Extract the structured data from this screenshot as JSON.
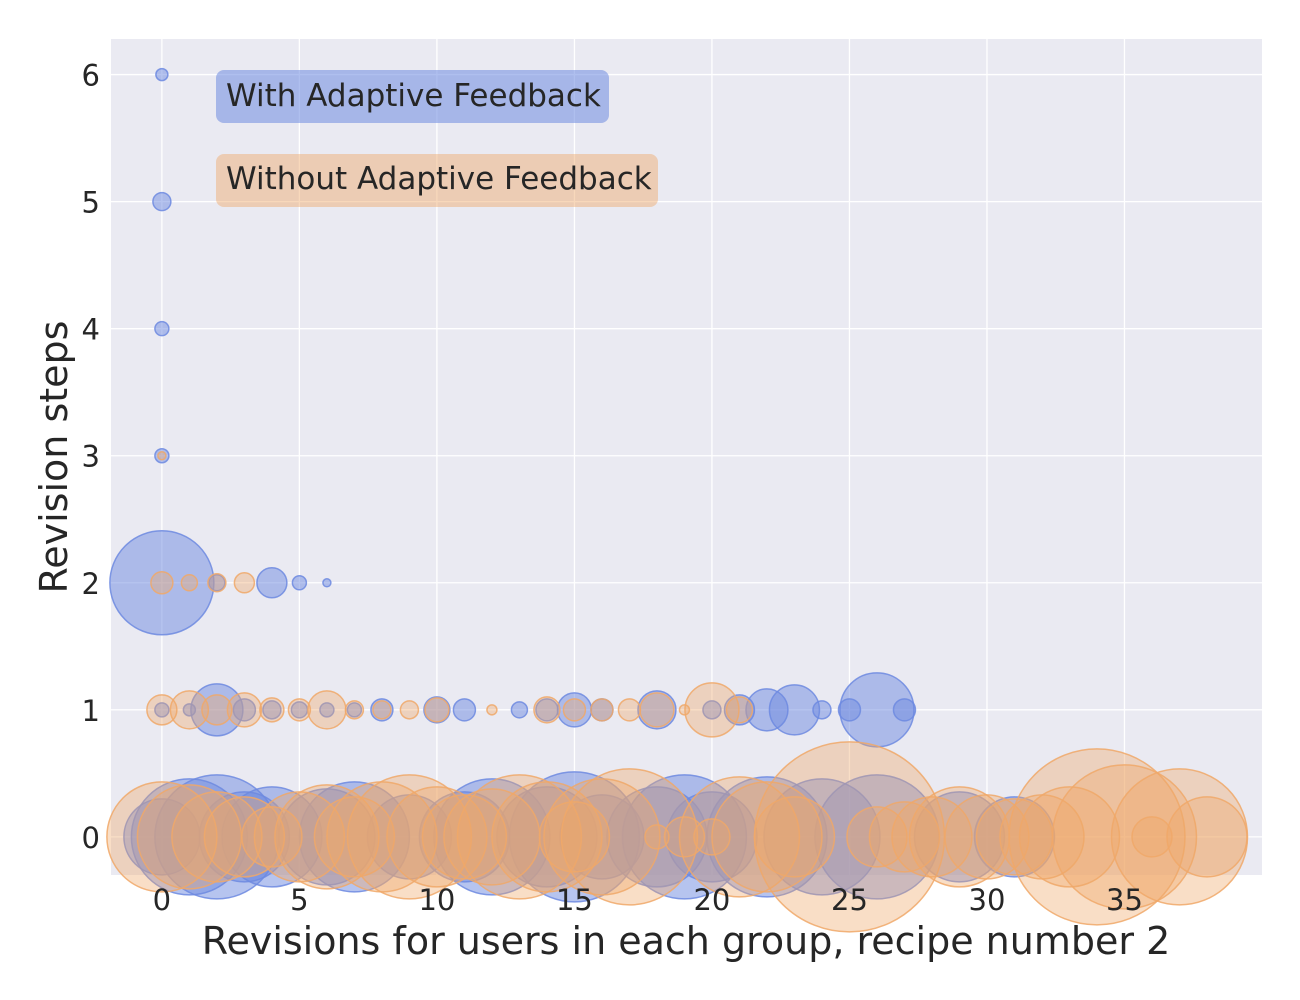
{
  "chart_data": {
    "type": "scatter",
    "xlabel": "Revisions for users in each group, recipe number 2",
    "ylabel": "Revision steps",
    "xlim": [
      -1.85,
      40
    ],
    "ylim": [
      -0.3,
      6.28
    ],
    "xticks": [
      0,
      5,
      10,
      15,
      20,
      25,
      30,
      35
    ],
    "yticks": [
      0,
      1,
      2,
      3,
      4,
      5,
      6
    ],
    "grid": true,
    "legend": "top-left",
    "size_note": "",
    "series": [
      {
        "name": "With Adaptive Feedback",
        "color": "#6d8ae0",
        "points": [
          {
            "x": 0,
            "y": 6,
            "s": 6
          },
          {
            "x": 0,
            "y": 5,
            "s": 9
          },
          {
            "x": 0,
            "y": 4,
            "s": 7
          },
          {
            "x": 0,
            "y": 3,
            "s": 7
          },
          {
            "x": 0,
            "y": 2,
            "s": 52
          },
          {
            "x": 2,
            "y": 2,
            "s": 8
          },
          {
            "x": 4,
            "y": 2,
            "s": 15
          },
          {
            "x": 5,
            "y": 2,
            "s": 7
          },
          {
            "x": 6,
            "y": 2,
            "s": 4
          },
          {
            "x": 0,
            "y": 1,
            "s": 7
          },
          {
            "x": 1,
            "y": 1,
            "s": 6
          },
          {
            "x": 2,
            "y": 1,
            "s": 26
          },
          {
            "x": 3,
            "y": 1,
            "s": 11
          },
          {
            "x": 4,
            "y": 1,
            "s": 9
          },
          {
            "x": 5,
            "y": 1,
            "s": 8
          },
          {
            "x": 6,
            "y": 1,
            "s": 7
          },
          {
            "x": 7,
            "y": 1,
            "s": 7
          },
          {
            "x": 8,
            "y": 1,
            "s": 11
          },
          {
            "x": 10,
            "y": 1,
            "s": 13
          },
          {
            "x": 11,
            "y": 1,
            "s": 11
          },
          {
            "x": 13,
            "y": 1,
            "s": 8
          },
          {
            "x": 14,
            "y": 1,
            "s": 11
          },
          {
            "x": 15,
            "y": 1,
            "s": 17
          },
          {
            "x": 16,
            "y": 1,
            "s": 11
          },
          {
            "x": 18,
            "y": 1,
            "s": 19
          },
          {
            "x": 20,
            "y": 1,
            "s": 9
          },
          {
            "x": 21,
            "y": 1,
            "s": 15
          },
          {
            "x": 22,
            "y": 1,
            "s": 21
          },
          {
            "x": 23,
            "y": 1,
            "s": 25
          },
          {
            "x": 24,
            "y": 1,
            "s": 9
          },
          {
            "x": 25,
            "y": 1,
            "s": 11
          },
          {
            "x": 26,
            "y": 1,
            "s": 37
          },
          {
            "x": 27,
            "y": 1,
            "s": 11
          },
          {
            "x": 0,
            "y": 0,
            "s": 38
          },
          {
            "x": 1,
            "y": 0,
            "s": 58
          },
          {
            "x": 2,
            "y": 0,
            "s": 62
          },
          {
            "x": 3,
            "y": 0,
            "s": 45
          },
          {
            "x": 4,
            "y": 0,
            "s": 50
          },
          {
            "x": 6,
            "y": 0,
            "s": 48
          },
          {
            "x": 7,
            "y": 0,
            "s": 55
          },
          {
            "x": 9,
            "y": 0,
            "s": 42
          },
          {
            "x": 11,
            "y": 0,
            "s": 45
          },
          {
            "x": 12,
            "y": 0,
            "s": 58
          },
          {
            "x": 14,
            "y": 0,
            "s": 50
          },
          {
            "x": 15,
            "y": 0,
            "s": 65
          },
          {
            "x": 16,
            "y": 0,
            "s": 42
          },
          {
            "x": 18,
            "y": 0,
            "s": 50
          },
          {
            "x": 19,
            "y": 0,
            "s": 62
          },
          {
            "x": 20,
            "y": 0,
            "s": 45
          },
          {
            "x": 22,
            "y": 0,
            "s": 60
          },
          {
            "x": 24,
            "y": 0,
            "s": 58
          },
          {
            "x": 26,
            "y": 0,
            "s": 62
          },
          {
            "x": 29,
            "y": 0,
            "s": 45
          },
          {
            "x": 31,
            "y": 0,
            "s": 40
          }
        ]
      },
      {
        "name": "Without Adaptive Feedback",
        "color": "#f0a868",
        "points": [
          {
            "x": 0,
            "y": 3,
            "s": 4
          },
          {
            "x": 0,
            "y": 2,
            "s": 11
          },
          {
            "x": 1,
            "y": 2,
            "s": 8
          },
          {
            "x": 2,
            "y": 2,
            "s": 9
          },
          {
            "x": 3,
            "y": 2,
            "s": 10
          },
          {
            "x": 0,
            "y": 1,
            "s": 15
          },
          {
            "x": 1,
            "y": 1,
            "s": 19
          },
          {
            "x": 2,
            "y": 1,
            "s": 15
          },
          {
            "x": 3,
            "y": 1,
            "s": 17
          },
          {
            "x": 4,
            "y": 1,
            "s": 12
          },
          {
            "x": 5,
            "y": 1,
            "s": 11
          },
          {
            "x": 6,
            "y": 1,
            "s": 19
          },
          {
            "x": 7,
            "y": 1,
            "s": 9
          },
          {
            "x": 8,
            "y": 1,
            "s": 9
          },
          {
            "x": 9,
            "y": 1,
            "s": 9
          },
          {
            "x": 10,
            "y": 1,
            "s": 12
          },
          {
            "x": 12,
            "y": 1,
            "s": 5
          },
          {
            "x": 14,
            "y": 1,
            "s": 13
          },
          {
            "x": 15,
            "y": 1,
            "s": 11
          },
          {
            "x": 16,
            "y": 1,
            "s": 11
          },
          {
            "x": 17,
            "y": 1,
            "s": 11
          },
          {
            "x": 18,
            "y": 1,
            "s": 17
          },
          {
            "x": 19,
            "y": 1,
            "s": 5
          },
          {
            "x": 20,
            "y": 1,
            "s": 27
          },
          {
            "x": 21,
            "y": 1,
            "s": 13
          },
          {
            "x": 0,
            "y": 0,
            "s": 55
          },
          {
            "x": 1,
            "y": 0,
            "s": 52
          },
          {
            "x": 2,
            "y": 0,
            "s": 45
          },
          {
            "x": 3,
            "y": 0,
            "s": 40
          },
          {
            "x": 4,
            "y": 0,
            "s": 30
          },
          {
            "x": 5,
            "y": 0,
            "s": 45
          },
          {
            "x": 6,
            "y": 0,
            "s": 52
          },
          {
            "x": 7,
            "y": 0,
            "s": 40
          },
          {
            "x": 8,
            "y": 0,
            "s": 55
          },
          {
            "x": 9,
            "y": 0,
            "s": 62
          },
          {
            "x": 10,
            "y": 0,
            "s": 50
          },
          {
            "x": 11,
            "y": 0,
            "s": 42
          },
          {
            "x": 12,
            "y": 0,
            "s": 48
          },
          {
            "x": 13,
            "y": 0,
            "s": 62
          },
          {
            "x": 14,
            "y": 0,
            "s": 55
          },
          {
            "x": 15,
            "y": 0,
            "s": 35
          },
          {
            "x": 16,
            "y": 0,
            "s": 58
          },
          {
            "x": 17,
            "y": 0,
            "s": 68
          },
          {
            "x": 18,
            "y": 0,
            "s": 12
          },
          {
            "x": 19,
            "y": 0,
            "s": 20
          },
          {
            "x": 20,
            "y": 0,
            "s": 18
          },
          {
            "x": 21,
            "y": 0,
            "s": 60
          },
          {
            "x": 22,
            "y": 0,
            "s": 55
          },
          {
            "x": 23,
            "y": 0,
            "s": 40
          },
          {
            "x": 25,
            "y": 0,
            "s": 95
          },
          {
            "x": 26,
            "y": 0,
            "s": 30
          },
          {
            "x": 27,
            "y": 0,
            "s": 35
          },
          {
            "x": 28,
            "y": 0,
            "s": 40
          },
          {
            "x": 29,
            "y": 0,
            "s": 50
          },
          {
            "x": 30,
            "y": 0,
            "s": 42
          },
          {
            "x": 31,
            "y": 0,
            "s": 38
          },
          {
            "x": 32,
            "y": 0,
            "s": 42
          },
          {
            "x": 33,
            "y": 0,
            "s": 50
          },
          {
            "x": 34,
            "y": 0,
            "s": 88
          },
          {
            "x": 35,
            "y": 0,
            "s": 72
          },
          {
            "x": 36,
            "y": 0,
            "s": 20
          },
          {
            "x": 37,
            "y": 0,
            "s": 68
          },
          {
            "x": 38,
            "y": 0,
            "s": 40
          }
        ]
      }
    ]
  }
}
